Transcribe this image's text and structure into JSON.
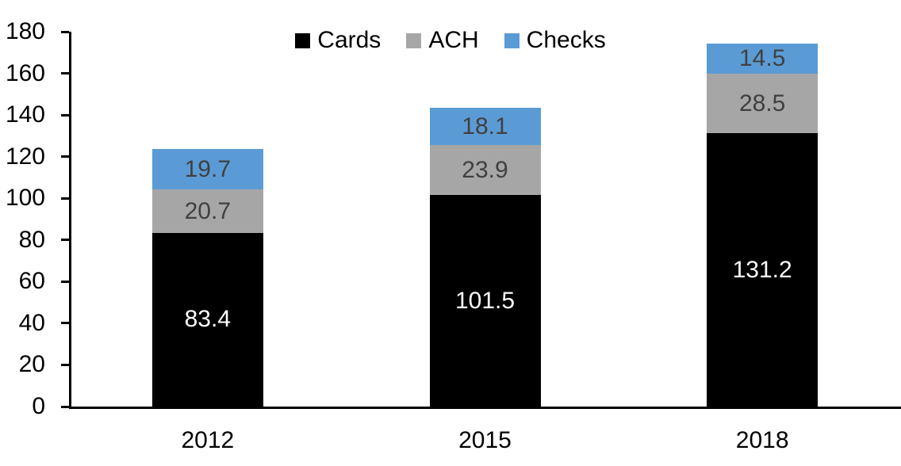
{
  "chart_data": {
    "type": "bar",
    "stacked": true,
    "title": "",
    "xlabel": "",
    "ylabel": "",
    "categories": [
      "2012",
      "2015",
      "2018"
    ],
    "series": [
      {
        "name": "Cards",
        "color": "#000000",
        "label_color": "#ffffff",
        "values": [
          83.4,
          101.5,
          131.2
        ]
      },
      {
        "name": "ACH",
        "color": "#a6a6a6",
        "label_color": "#404040",
        "values": [
          20.7,
          23.9,
          28.5
        ]
      },
      {
        "name": "Checks",
        "color": "#5b9bd5",
        "label_color": "#404040",
        "values": [
          19.7,
          18.1,
          14.5
        ]
      }
    ],
    "stack_totals": [
      123.8,
      143.5,
      174.2
    ],
    "ylim": [
      0,
      180
    ],
    "yticks": [
      0,
      20,
      40,
      60,
      80,
      100,
      120,
      140,
      160,
      180
    ],
    "grid": false,
    "legend_position": "top-center",
    "data_labels": true,
    "data_label_decimals": 1,
    "axis_color": "#000000",
    "text_color": "#000000"
  }
}
